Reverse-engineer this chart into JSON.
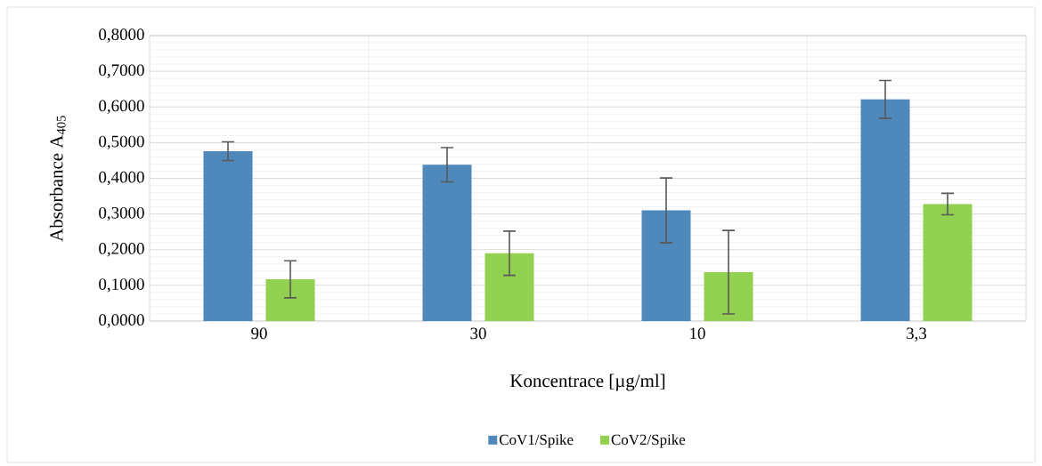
{
  "chart_data": {
    "type": "bar",
    "xlabel": "Koncentrace [µg/ml]",
    "ylabel": "Absorbance A$_{405}$",
    "categories": [
      "90",
      "30",
      "10",
      "3,3"
    ],
    "series": [
      {
        "name": "CoV1/Spike",
        "color": "#4f88bb",
        "values": [
          0.476,
          0.438,
          0.31,
          0.621
        ],
        "errors": [
          0.026,
          0.048,
          0.091,
          0.053
        ]
      },
      {
        "name": "CoV2/Spike",
        "color": "#92d050",
        "values": [
          0.117,
          0.19,
          0.137,
          0.328
        ],
        "errors": [
          0.052,
          0.062,
          0.117,
          0.03
        ]
      }
    ],
    "ylim": [
      0,
      0.8
    ],
    "yticks": [
      {
        "value": 0,
        "label": "0,0000"
      },
      {
        "value": 0.1,
        "label": "0,1000"
      },
      {
        "value": 0.2,
        "label": "0,2000"
      },
      {
        "value": 0.3,
        "label": "0,3000"
      },
      {
        "value": 0.4,
        "label": "0,4000"
      },
      {
        "value": 0.5,
        "label": "0,5000"
      },
      {
        "value": 0.6,
        "label": "0,6000"
      },
      {
        "value": 0.7,
        "label": "0,7000"
      },
      {
        "value": 0.8,
        "label": "0,8000"
      }
    ],
    "grid": true,
    "legend": "bottom"
  }
}
